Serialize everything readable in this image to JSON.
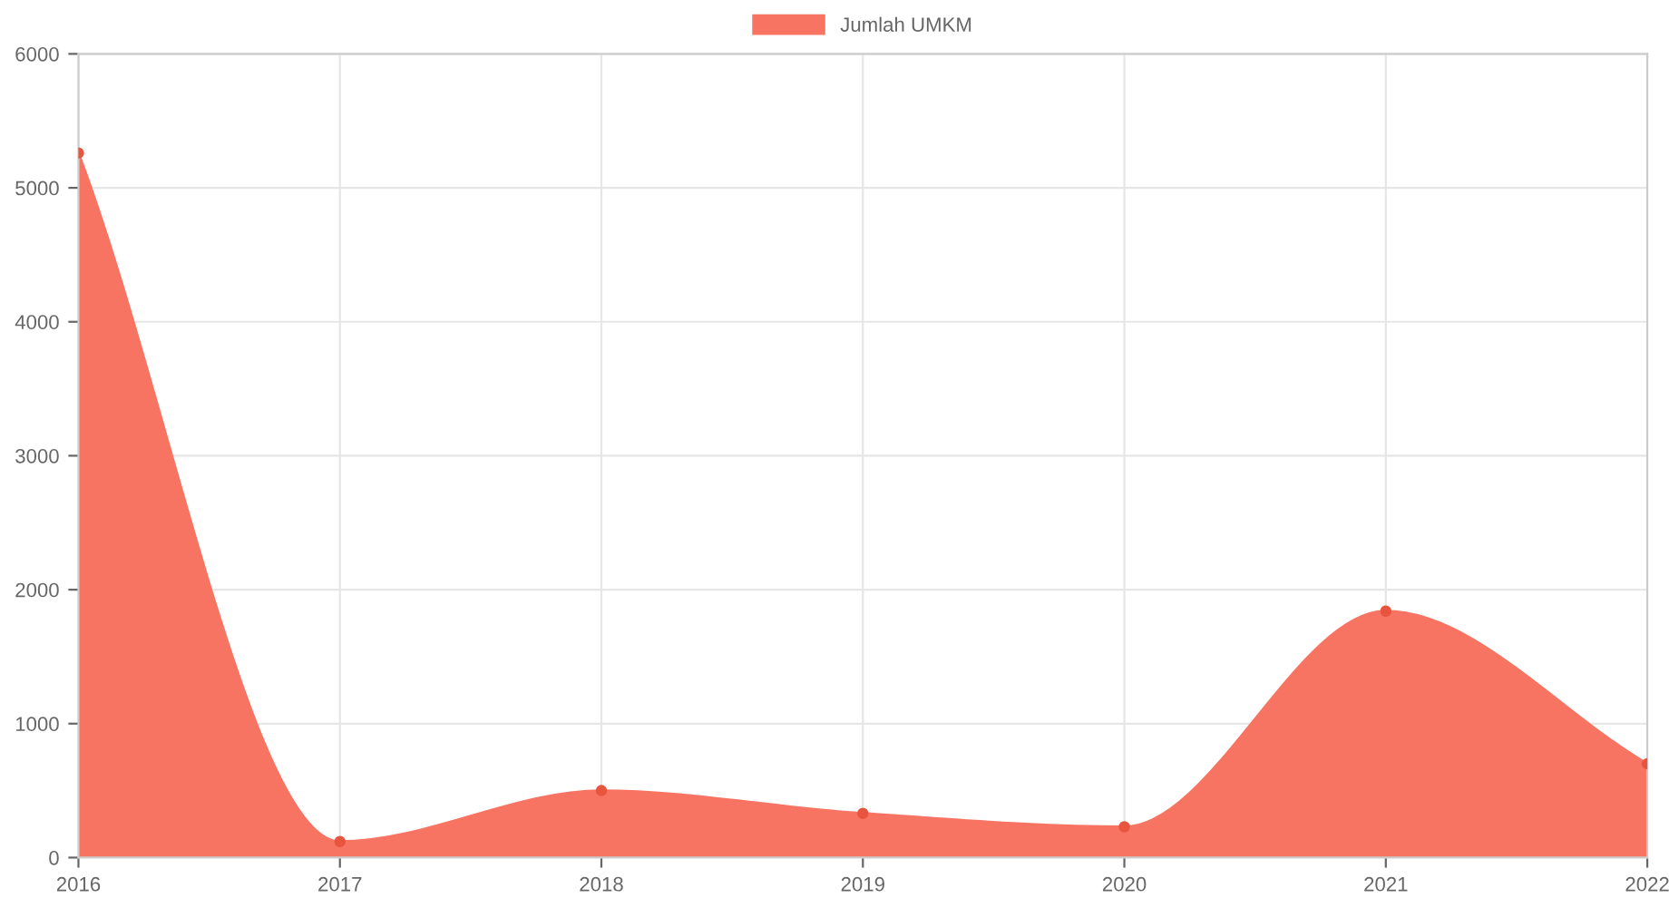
{
  "chart_data": {
    "type": "area",
    "categories": [
      "2016",
      "2017",
      "2018",
      "2019",
      "2020",
      "2021",
      "2022"
    ],
    "series": [
      {
        "name": "Jumlah UMKM",
        "color": "#f87462",
        "values": [
          5260,
          120,
          500,
          330,
          230,
          1840,
          700
        ]
      }
    ],
    "ylim": [
      0,
      6000
    ],
    "yticks": [
      0,
      1000,
      2000,
      3000,
      4000,
      5000,
      6000
    ],
    "grid": true,
    "legend": "top",
    "marker": "circle"
  }
}
